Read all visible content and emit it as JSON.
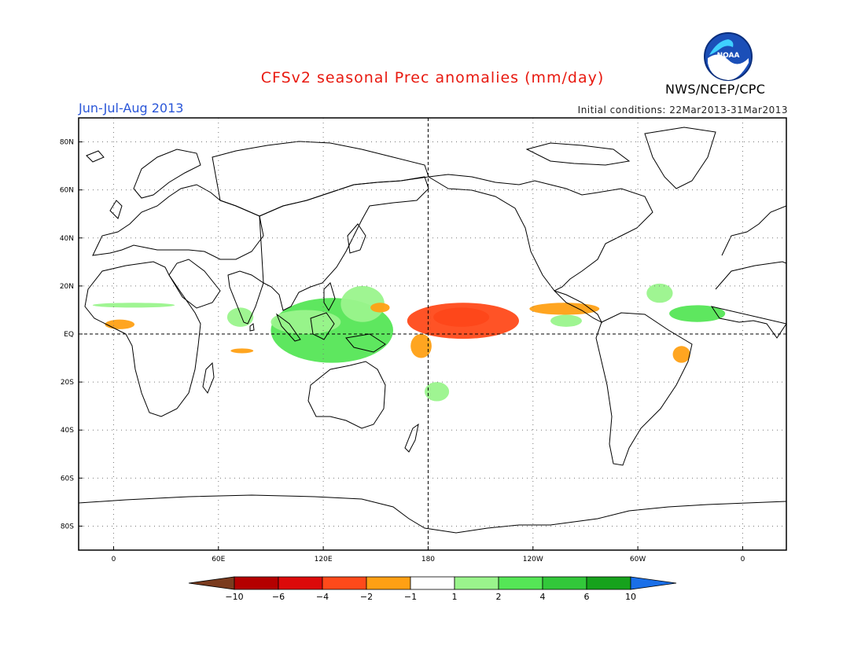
{
  "title": "CFSv2 seasonal Prec anomalies (mm/day)",
  "season": "Jun-Jul-Aug 2013",
  "initial_conditions": "Initial conditions: 22Mar2013-31Mar2013",
  "agency": "NWS/NCEP/CPC",
  "logo_text": "NOAA",
  "map": {
    "lon_range": [
      -20,
      385
    ],
    "lat_range": [
      -90,
      90
    ],
    "lat_ticks": [
      {
        "value": 80,
        "label": "80N"
      },
      {
        "value": 60,
        "label": "60N"
      },
      {
        "value": 40,
        "label": "40N"
      },
      {
        "value": 20,
        "label": "20N"
      },
      {
        "value": 0,
        "label": "EQ"
      },
      {
        "value": -20,
        "label": "20S"
      },
      {
        "value": -40,
        "label": "40S"
      },
      {
        "value": -60,
        "label": "60S"
      },
      {
        "value": -80,
        "label": "80S"
      }
    ],
    "lon_ticks": [
      {
        "value": 0,
        "label": "0"
      },
      {
        "value": 60,
        "label": "60E"
      },
      {
        "value": 120,
        "label": "120E"
      },
      {
        "value": 180,
        "label": "180"
      },
      {
        "value": 240,
        "label": "120W"
      },
      {
        "value": 300,
        "label": "60W"
      },
      {
        "value": 360,
        "label": "0"
      }
    ],
    "grid": true,
    "dashed_reference_lines": [
      "equator",
      "dateline"
    ]
  },
  "colorbar": {
    "bins": [
      {
        "label": "-10",
        "color": "#7a3b1e"
      },
      {
        "label": "-6",
        "color": "#b40000"
      },
      {
        "label": "-4",
        "color": "#dc0a0a"
      },
      {
        "label": "-2",
        "color": "#ff4a1a"
      },
      {
        "label": "-1",
        "color": "#ffa014"
      },
      {
        "label": "",
        "color": "#ffffff"
      },
      {
        "label": "1",
        "color": "#9af48c"
      },
      {
        "label": "2",
        "color": "#55e656"
      },
      {
        "label": "4",
        "color": "#32c83a"
      },
      {
        "label": "6",
        "color": "#16a21c"
      },
      {
        "label": "10",
        "color": "#1a6fe8"
      }
    ],
    "tick_labels": [
      "-10",
      "-6",
      "-4",
      "-2",
      "-1",
      "1",
      "2",
      "4",
      "6",
      "10"
    ]
  },
  "anomaly_regions": [
    {
      "name": "central-pacific-dry-core",
      "lon": [
        183,
        215
      ],
      "lat": [
        3,
        11
      ],
      "value": -5
    },
    {
      "name": "central-pacific-dry",
      "lon": [
        168,
        232
      ],
      "lat": [
        -2,
        13
      ],
      "value": -3
    },
    {
      "name": "central-pacific-dry-south",
      "lon": [
        170,
        182
      ],
      "lat": [
        -10,
        0
      ],
      "value": -1.5
    },
    {
      "name": "maritime-continent-wet",
      "lon": [
        90,
        160
      ],
      "lat": [
        -12,
        15
      ],
      "value": 2
    },
    {
      "name": "bay-of-bengal-wet",
      "lon": [
        90,
        130
      ],
      "lat": [
        0,
        10
      ],
      "value": 1.5
    },
    {
      "name": "west-pacific-wet-north",
      "lon": [
        130,
        155
      ],
      "lat": [
        5,
        20
      ],
      "value": 1.5
    },
    {
      "name": "west-pacific-dry-north",
      "lon": [
        147,
        158
      ],
      "lat": [
        9,
        13
      ],
      "value": -1.5
    },
    {
      "name": "south-pacific-wet",
      "lon": [
        178,
        192
      ],
      "lat": [
        -28,
        -20
      ],
      "value": 1.5
    },
    {
      "name": "tropical-atlantic-wet",
      "lon": [
        318,
        350
      ],
      "lat": [
        5,
        12
      ],
      "value": 2
    },
    {
      "name": "caribbean-wet",
      "lon": [
        305,
        320
      ],
      "lat": [
        13,
        21
      ],
      "value": 1.2
    },
    {
      "name": "east-pacific-wet",
      "lon": [
        250,
        268
      ],
      "lat": [
        3,
        8
      ],
      "value": 1.2
    },
    {
      "name": "east-pacific-dry",
      "lon": [
        238,
        278
      ],
      "lat": [
        13,
        8
      ],
      "value": -1.2
    },
    {
      "name": "gulf-of-guinea-dry",
      "lon": [
        -5,
        12
      ],
      "lat": [
        2,
        6
      ],
      "value": -1.5
    },
    {
      "name": "ne-brazil-dry",
      "lon": [
        320,
        330
      ],
      "lat": [
        -12,
        -5
      ],
      "value": -1.5
    },
    {
      "name": "indian-ocean-wet",
      "lon": [
        65,
        80
      ],
      "lat": [
        3,
        11
      ],
      "value": 1.5
    },
    {
      "name": "south-indian-dry",
      "lon": [
        67,
        80
      ],
      "lat": [
        -8,
        -6
      ],
      "value": -1.2
    },
    {
      "name": "west-africa-wet",
      "lon": [
        -12,
        35
      ],
      "lat": [
        11,
        13
      ],
      "value": 1.2
    }
  ]
}
